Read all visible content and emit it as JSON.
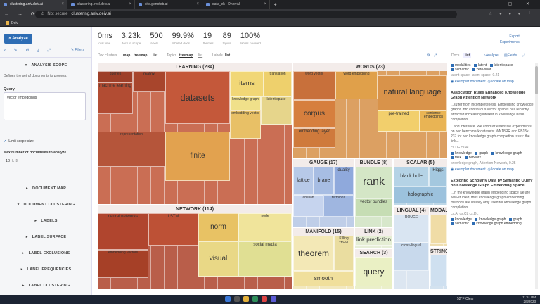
{
  "browser": {
    "tabs": [
      {
        "title": "clustering.anlv.deiv.ai",
        "active": true
      },
      {
        "title": "clustering.evcl.deiv.ai",
        "active": false
      },
      {
        "title": "cite.genoteb.ai",
        "active": false
      },
      {
        "title": "data_ek - DnerrAl",
        "active": false
      }
    ],
    "url_prefix": "Not secure",
    "url": "clustering.anlv.deiv.ai",
    "bookmark": "Deiv"
  },
  "sidebar": {
    "analyze_label": "Analyze",
    "filters_label": "Filters",
    "analysis_scope": "ANALYSIS SCOPE",
    "scope_desc": "Defines the set of documents to process.",
    "query_label": "Query",
    "query_value": "vector embeddings",
    "limit_label": "Limit scope size",
    "max_label": "Max number of documents to analyze",
    "max_value": "10",
    "sections": [
      "DOCUMENT MAP",
      "DOCUMENT CLUSTERING",
      "LABELS",
      "LABEL SURFACE",
      "LABEL EXCLUSIONS",
      "LABEL FREQUENCIES",
      "LABEL CLUSTERING"
    ]
  },
  "stats": [
    {
      "value": "0ms",
      "label": "total time"
    },
    {
      "value": "3.23k",
      "label": "docs in scope"
    },
    {
      "value": "500",
      "label": "labels"
    },
    {
      "value": "99.9%",
      "label": "labeled docs"
    },
    {
      "value": "19",
      "label": "themes"
    },
    {
      "value": "89",
      "label": "topics"
    },
    {
      "value": "100%",
      "label": "labels covered"
    }
  ],
  "top_right": {
    "line1": "Export",
    "line2": "Experiments"
  },
  "viewbar": {
    "doc_clusters": "Doc clusters",
    "map": "map",
    "treemap": "treemap",
    "list": "list",
    "topics": "Topics",
    "labels": "Labels",
    "docs": "Docs",
    "analyze": "Analyze",
    "fields": "Fields"
  },
  "treemap": {
    "groups": [
      {
        "key": "learning",
        "title": "LEARNING (234)",
        "cells": [
          {
            "t": "datasets",
            "fs": 13,
            "c": "#c4583a"
          },
          {
            "t": "machine learning",
            "fs": 6,
            "c": "#b24c33"
          },
          {
            "t": "matrix",
            "fs": 6,
            "c": "#a8452c"
          },
          {
            "t": "items",
            "fs": 9,
            "c": "#f1d776"
          },
          {
            "t": "translation",
            "fs": 5,
            "c": "#eed06c"
          },
          {
            "t": "finite",
            "fs": 10,
            "c": "#e2a24f"
          },
          {
            "t": "queries",
            "fs": 5,
            "c": "#9e3f29"
          },
          {
            "t": "representation",
            "fs": 5,
            "c": "#b5553a"
          },
          {
            "t": "embedding vector",
            "fs": 5,
            "c": "#e8c066"
          },
          {
            "t": "latent space",
            "fs": 5,
            "c": "#e6d58b"
          },
          {
            "t": "knowledge graph",
            "fs": 5,
            "c": "#f0e08a"
          }
        ]
      },
      {
        "key": "words",
        "title": "WORDS (73)",
        "cells": [
          {
            "t": "natural language",
            "fs": 11,
            "c": "#d9934a"
          },
          {
            "t": "corpus",
            "fs": 10,
            "c": "#d67f3e"
          },
          {
            "t": "embedding layer",
            "fs": 6,
            "c": "#cf7a3c"
          },
          {
            "t": "word vector",
            "fs": 5,
            "c": "#c8703b"
          },
          {
            "t": "pre-trained",
            "fs": 6,
            "c": "#f2cf6c"
          },
          {
            "t": "sentence embeddings",
            "fs": 5,
            "c": "#e9b454"
          },
          {
            "t": "word embedding",
            "fs": 5,
            "c": "#e0a04a"
          }
        ]
      },
      {
        "key": "network",
        "title": "NETWORK (114)",
        "cells": [
          {
            "t": "neural networks",
            "fs": 6,
            "c": "#b0452e"
          },
          {
            "t": "norm",
            "fs": 10,
            "c": "#e8c264"
          },
          {
            "t": "visual",
            "fs": 10,
            "c": "#e9d886"
          },
          {
            "t": "embedding vectors",
            "fs": 5,
            "c": "#a64027"
          },
          {
            "t": "LSTM",
            "fs": 6,
            "c": "#bd5136"
          },
          {
            "t": "social media",
            "fs": 6,
            "c": "#e0df93"
          },
          {
            "t": "node",
            "fs": 5,
            "c": "#f0e49b"
          }
        ]
      },
      {
        "key": "gauge",
        "title": "GAUGE (17)",
        "cells": [
          {
            "t": "lattice",
            "fs": 7,
            "c": "#b7c9e8"
          },
          {
            "t": "brane",
            "fs": 7,
            "c": "#a7bde3"
          },
          {
            "t": "duality",
            "fs": 6,
            "c": "#8fa9dc"
          },
          {
            "t": "abelian",
            "fs": 5,
            "c": "#c6d4ee"
          },
          {
            "t": "fermions",
            "fs": 5,
            "c": "#9fb6e0"
          }
        ]
      },
      {
        "key": "bundle",
        "title": "BUNDLE (8)",
        "cells": [
          {
            "t": "rank",
            "fs": 16,
            "c": "#d4e6c6"
          },
          {
            "t": "vector bundles",
            "fs": 6,
            "c": "#c6ddb4"
          }
        ]
      },
      {
        "key": "scalar",
        "title": "SCALAR (5)",
        "cells": [
          {
            "t": "black hole",
            "fs": 7,
            "c": "#b5d3e6"
          },
          {
            "t": "Higgs",
            "fs": 6,
            "c": "#a4c8df"
          },
          {
            "t": "holographic",
            "fs": 7,
            "c": "#9cc2dd"
          }
        ]
      },
      {
        "key": "manifold",
        "title": "MANIFOLD (15)",
        "cells": [
          {
            "t": "theorem",
            "fs": 12,
            "c": "#f3e8b6"
          },
          {
            "t": "Killing vector",
            "fs": 5,
            "c": "#eadda0"
          },
          {
            "t": "smooth",
            "fs": 8,
            "c": "#f0df9c"
          }
        ]
      },
      {
        "key": "link",
        "title": "LINK (2)",
        "cells": [
          {
            "t": "link prediction",
            "fs": 8,
            "c": "#e5eed4"
          }
        ]
      },
      {
        "key": "search",
        "title": "SEARCH (3)",
        "cells": [
          {
            "t": "query",
            "fs": 12,
            "c": "#eaf0c4"
          }
        ]
      },
      {
        "key": "lingual",
        "title": "LINGUAL (4)",
        "cells": [
          {
            "t": "ROUGE",
            "fs": 5,
            "c": "#d9e5f2"
          },
          {
            "t": "cross-lingual",
            "fs": 5,
            "c": "#c8d9ec"
          }
        ]
      },
      {
        "key": "modal",
        "title": "MODAL (2)",
        "cells": [
          {
            "t": "",
            "fs": 5,
            "c": "#f0dca6"
          }
        ]
      },
      {
        "key": "string",
        "title": "STRING",
        "cells": [
          {
            "t": "",
            "fs": 5,
            "c": "#cfe0f0"
          }
        ]
      }
    ]
  },
  "docs": {
    "top_tags": [
      "modalities",
      "latent",
      "latent space",
      "semantic",
      "zero-shot"
    ],
    "top_meta": "latent space, latent space, 0.21",
    "exemplar": "exemplar document",
    "locate": "locate on map",
    "items": [
      {
        "title": "Association Rules Enhanced Knowledge Graph Attention Network",
        "snippet1": "...suffer from incompleteness. Embedding knowledge graphs into continuous vector spaces has recently attracted increasing interest in knowledge base completion. ...",
        "snippet2": "...and inference. We conduct extensive experiments on two benchmark datasets: WN18RR and FB15k-237 for two knowledge graph completion tasks: the link...",
        "meta": "cs.LG  cs.AI",
        "tags": [
          "knowledge",
          "graph",
          "knowledge graph",
          "task",
          "network"
        ],
        "tagmeta": "knowledge graph, Attention Network, 0.25"
      },
      {
        "title": "Exploring Scholarly Data by Semantic Query on Knowledge Graph Embedding Space",
        "snippet1": "...in the knowledge graph embedding space we are well-studied, thus knowledge graph embedding methods are usually only used for knowledge graph completion...",
        "meta": "cs.AI  cs.CL  cs.DL",
        "tags": [
          "knowledge",
          "knowledge graph",
          "graph",
          "semantic",
          "knowledge graph embedding"
        ]
      }
    ]
  },
  "taskbar": {
    "weather": "52°F Clear",
    "time": "11:51 PM",
    "date": "2/8/2023"
  }
}
